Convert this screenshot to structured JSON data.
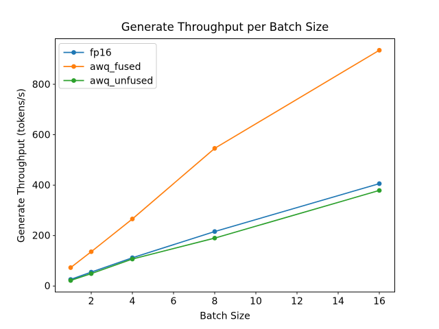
{
  "chart_data": {
    "type": "line",
    "title": "Generate Throughput per Batch Size",
    "xlabel": "Batch Size",
    "ylabel": "Generate Throughput (tokens/s)",
    "x": [
      1,
      2,
      4,
      8,
      16
    ],
    "series": [
      {
        "name": "fp16",
        "color": "#1f77b4",
        "values": [
          26,
          55,
          112,
          216,
          406
        ]
      },
      {
        "name": "awq_fused",
        "color": "#ff7f0e",
        "values": [
          73,
          136,
          266,
          546,
          935
        ]
      },
      {
        "name": "awq_unfused",
        "color": "#2ca02c",
        "values": [
          22,
          49,
          107,
          190,
          379
        ]
      }
    ],
    "xticks": [
      2,
      4,
      6,
      8,
      10,
      12,
      14,
      16
    ],
    "yticks": [
      0,
      200,
      400,
      600,
      800
    ],
    "xlim": [
      0.25,
      16.75
    ],
    "ylim": [
      -23.7,
      980.7
    ],
    "grid": false,
    "marker": "o",
    "legend_position": "upper left",
    "background_color": "#ffffff",
    "spine_color": "#000000",
    "legend_border_color": "#cccccc"
  }
}
